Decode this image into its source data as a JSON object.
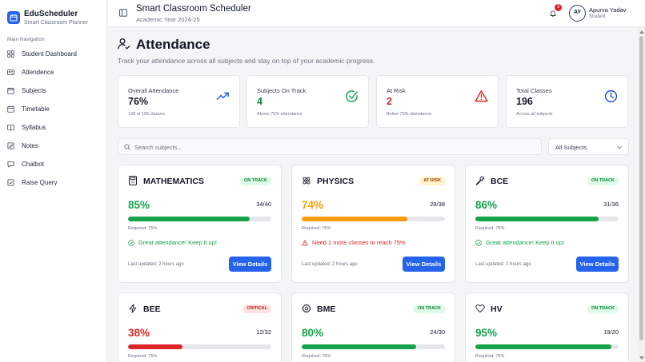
{
  "app": {
    "name": "EduScheduler",
    "tagline": "Smart Classroom Planner"
  },
  "header": {
    "title": "Smart Classroom Scheduler",
    "subtitle": "Academic Year 2024-25",
    "notification_count": "3",
    "user_initials": "AY",
    "user_name": "Apurva Yadav",
    "user_role": "Student"
  },
  "sidebar": {
    "heading": "Main Navigation",
    "items": [
      {
        "label": "Student Dashboard",
        "icon": "grid-icon"
      },
      {
        "label": "Attendence",
        "icon": "id-card-icon"
      },
      {
        "label": "Subjects",
        "icon": "calendar-icon"
      },
      {
        "label": "Timetable",
        "icon": "calendar-icon"
      },
      {
        "label": "Syllabus",
        "icon": "book-icon"
      },
      {
        "label": "Notes",
        "icon": "note-icon"
      },
      {
        "label": "Chatbot",
        "icon": "chat-icon"
      },
      {
        "label": "Raise Query",
        "icon": "checkbox-icon"
      }
    ]
  },
  "page": {
    "title": "Attendance",
    "subtitle": "Track your attendance across all subjects and stay on top of your academic progress."
  },
  "stats": [
    {
      "label": "Overall Attendance",
      "value": "76%",
      "note": "148 of 196 classes",
      "color": "#111827",
      "icon": "trending-up-icon",
      "icon_color": "#2563eb"
    },
    {
      "label": "Subjects On Track",
      "value": "4",
      "note": "Above 75% attendance",
      "color": "#15803d",
      "icon": "check-circle-icon",
      "icon_color": "#16a34a"
    },
    {
      "label": "At Risk",
      "value": "2",
      "note": "Below 75% attendance",
      "color": "#dc2626",
      "icon": "warning-icon",
      "icon_color": "#dc2626"
    },
    {
      "label": "Total Classes",
      "value": "196",
      "note": "Across all subjects",
      "color": "#111827",
      "icon": "clock-icon",
      "icon_color": "#1d4ed8"
    }
  ],
  "filters": {
    "search_placeholder": "Search subjects...",
    "selected": "All Subjects"
  },
  "subjects": [
    {
      "name": "MATHEMATICS",
      "icon": "calculator-icon",
      "status": "ON TRACK",
      "percent": "85%",
      "ratio": "34/40",
      "fraction": 0.85,
      "required": "Required: 75%",
      "message": "Great attendance! Keep it up!",
      "updated": "Last updated: 2 hours ago",
      "button": "View Details"
    },
    {
      "name": "PHYSICS",
      "icon": "atom-icon",
      "status": "AT RISK",
      "percent": "74%",
      "ratio": "28/38",
      "fraction": 0.74,
      "required": "Required: 75%",
      "message": "Need 1 more classes to reach 75%",
      "updated": "Last updated: 2 hours ago",
      "button": "View Details"
    },
    {
      "name": "BCE",
      "icon": "wrench-icon",
      "status": "ON TRACK",
      "percent": "86%",
      "ratio": "31/36",
      "fraction": 0.86,
      "required": "Required: 75%",
      "message": "Great attendance! Keep it up!",
      "updated": "Last updated: 2 hours ago",
      "button": "View Details"
    },
    {
      "name": "BEE",
      "icon": "lightning-icon",
      "status": "CRITICAL",
      "percent": "38%",
      "ratio": "12/32",
      "fraction": 0.38,
      "required": "Required: 75%"
    },
    {
      "name": "BME",
      "icon": "gear-icon",
      "status": "ON TRACK",
      "percent": "80%",
      "ratio": "24/30",
      "fraction": 0.8,
      "required": "Required: 75%"
    },
    {
      "name": "HV",
      "icon": "heart-icon",
      "status": "ON TRACK",
      "percent": "95%",
      "ratio": "19/20",
      "fraction": 0.95,
      "required": "Required: 75%"
    }
  ],
  "colors": {
    "accent": "#2563eb",
    "good": "#16a34a",
    "warn": "#f59e0b",
    "critical": "#dc2626"
  }
}
